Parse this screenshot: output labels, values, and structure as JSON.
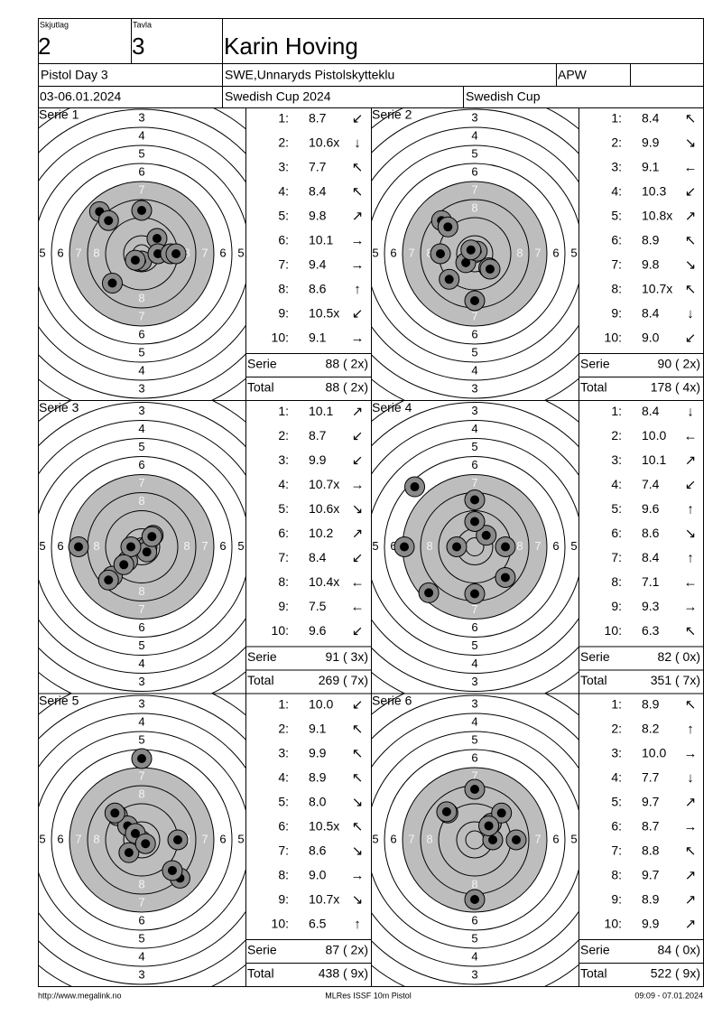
{
  "header": {
    "squad_label": "Skjutlag",
    "squad": "2",
    "target_label": "Tavla",
    "target": "3",
    "name": "Karin Hoving",
    "event": "Pistol Day 3",
    "club": "SWE,Unnaryds Pistolskytteklu",
    "class": "APW",
    "dates": "03-06.01.2024",
    "competition": "Swedish Cup 2024",
    "competition_short": "Swedish Cup"
  },
  "ring_labels": [
    "3",
    "4",
    "5",
    "6",
    "7",
    "8"
  ],
  "series": [
    {
      "title": "Serie 1",
      "shots": [
        {
          "n": "1:",
          "score": "8.7",
          "dir": "↙"
        },
        {
          "n": "2:",
          "score": "10.6x",
          "dir": "↓"
        },
        {
          "n": "3:",
          "score": "7.7",
          "dir": "↖"
        },
        {
          "n": "4:",
          "score": "8.4",
          "dir": "↖"
        },
        {
          "n": "5:",
          "score": "9.8",
          "dir": "↗"
        },
        {
          "n": "6:",
          "score": "10.1",
          "dir": "→"
        },
        {
          "n": "7:",
          "score": "9.4",
          "dir": "→"
        },
        {
          "n": "8:",
          "score": "8.6",
          "dir": "↑"
        },
        {
          "n": "9:",
          "score": "10.5x",
          "dir": "↙"
        },
        {
          "n": "10:",
          "score": "9.1",
          "dir": "→"
        }
      ],
      "serie_label": "Serie",
      "serie": "88 ( 2x)",
      "total_label": "Total",
      "total": "88 ( 2x)"
    },
    {
      "title": "Serie 2",
      "shots": [
        {
          "n": "1:",
          "score": "8.4",
          "dir": "↖"
        },
        {
          "n": "2:",
          "score": "9.9",
          "dir": "↘"
        },
        {
          "n": "3:",
          "score": "9.1",
          "dir": "←"
        },
        {
          "n": "4:",
          "score": "10.3",
          "dir": "↙"
        },
        {
          "n": "5:",
          "score": "10.8x",
          "dir": "↗"
        },
        {
          "n": "6:",
          "score": "8.9",
          "dir": "↖"
        },
        {
          "n": "7:",
          "score": "9.8",
          "dir": "↘"
        },
        {
          "n": "8:",
          "score": "10.7x",
          "dir": "↖"
        },
        {
          "n": "9:",
          "score": "8.4",
          "dir": "↓"
        },
        {
          "n": "10:",
          "score": "9.0",
          "dir": "↙"
        }
      ],
      "serie_label": "Serie",
      "serie": "90 ( 2x)",
      "total_label": "Total",
      "total": "178 ( 4x)"
    },
    {
      "title": "Serie 3",
      "shots": [
        {
          "n": "1:",
          "score": "10.1",
          "dir": "↗"
        },
        {
          "n": "2:",
          "score": "8.7",
          "dir": "↙"
        },
        {
          "n": "3:",
          "score": "9.9",
          "dir": "↙"
        },
        {
          "n": "4:",
          "score": "10.7x",
          "dir": "→"
        },
        {
          "n": "5:",
          "score": "10.6x",
          "dir": "↘"
        },
        {
          "n": "6:",
          "score": "10.2",
          "dir": "↗"
        },
        {
          "n": "7:",
          "score": "8.4",
          "dir": "↙"
        },
        {
          "n": "8:",
          "score": "10.4x",
          "dir": "←"
        },
        {
          "n": "9:",
          "score": "7.5",
          "dir": "←"
        },
        {
          "n": "10:",
          "score": "9.6",
          "dir": "↙"
        }
      ],
      "serie_label": "Serie",
      "serie": "91 ( 3x)",
      "total_label": "Total",
      "total": "269 ( 7x)"
    },
    {
      "title": "Serie 4",
      "shots": [
        {
          "n": "1:",
          "score": "8.4",
          "dir": "↓"
        },
        {
          "n": "2:",
          "score": "10.0",
          "dir": "←"
        },
        {
          "n": "3:",
          "score": "10.1",
          "dir": "↗"
        },
        {
          "n": "4:",
          "score": "7.4",
          "dir": "↙"
        },
        {
          "n": "5:",
          "score": "9.6",
          "dir": "↑"
        },
        {
          "n": "6:",
          "score": "8.6",
          "dir": "↘"
        },
        {
          "n": "7:",
          "score": "8.4",
          "dir": "↑"
        },
        {
          "n": "8:",
          "score": "7.1",
          "dir": "←"
        },
        {
          "n": "9:",
          "score": "9.3",
          "dir": "→"
        },
        {
          "n": "10:",
          "score": "6.3",
          "dir": "↖"
        }
      ],
      "serie_label": "Serie",
      "serie": "82 ( 0x)",
      "total_label": "Total",
      "total": "351 ( 7x)"
    },
    {
      "title": "Serie 5",
      "shots": [
        {
          "n": "1:",
          "score": "10.0",
          "dir": "↙"
        },
        {
          "n": "2:",
          "score": "9.1",
          "dir": "↖"
        },
        {
          "n": "3:",
          "score": "9.9",
          "dir": "↖"
        },
        {
          "n": "4:",
          "score": "8.9",
          "dir": "↖"
        },
        {
          "n": "5:",
          "score": "8.0",
          "dir": "↘"
        },
        {
          "n": "6:",
          "score": "10.5x",
          "dir": "↖"
        },
        {
          "n": "7:",
          "score": "8.6",
          "dir": "↘"
        },
        {
          "n": "8:",
          "score": "9.0",
          "dir": "→"
        },
        {
          "n": "9:",
          "score": "10.7x",
          "dir": "↘"
        },
        {
          "n": "10:",
          "score": "6.5",
          "dir": "↑"
        }
      ],
      "serie_label": "Serie",
      "serie": "87 ( 2x)",
      "total_label": "Total",
      "total": "438 ( 9x)"
    },
    {
      "title": "Serie 6",
      "shots": [
        {
          "n": "1:",
          "score": "8.9",
          "dir": "↖"
        },
        {
          "n": "2:",
          "score": "8.2",
          "dir": "↑"
        },
        {
          "n": "3:",
          "score": "10.0",
          "dir": "→"
        },
        {
          "n": "4:",
          "score": "7.7",
          "dir": "↓"
        },
        {
          "n": "5:",
          "score": "9.7",
          "dir": "↗"
        },
        {
          "n": "6:",
          "score": "8.7",
          "dir": "→"
        },
        {
          "n": "7:",
          "score": "8.8",
          "dir": "↖"
        },
        {
          "n": "8:",
          "score": "9.7",
          "dir": "↗"
        },
        {
          "n": "9:",
          "score": "8.9",
          "dir": "↗"
        },
        {
          "n": "10:",
          "score": "9.9",
          "dir": "↗"
        }
      ],
      "serie_label": "Serie",
      "serie": "84 ( 0x)",
      "total_label": "Total",
      "total": "522 ( 9x)"
    }
  ],
  "footer": {
    "url": "http://www.megalink.no",
    "program": "MLRes ISSF 10m Pistol",
    "timestamp": "09:09 - 07.01.2024"
  }
}
